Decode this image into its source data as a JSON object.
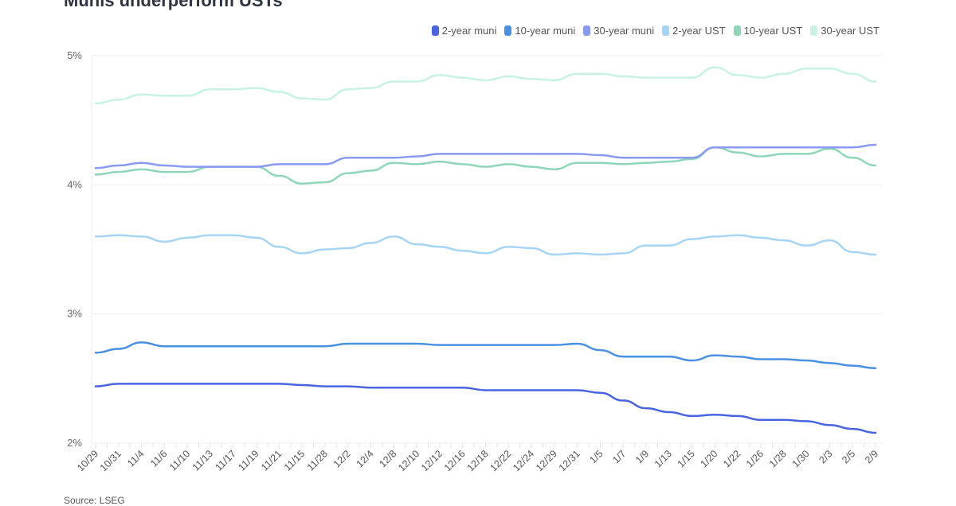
{
  "title": "Munis underperform USTs",
  "source": "Source: LSEG",
  "chart_data": {
    "type": "line",
    "title": "Munis underperform USTs",
    "xlabel": "",
    "ylabel": "",
    "ylim": [
      2,
      5
    ],
    "yticks": [
      {
        "v": 2,
        "label": "2%"
      },
      {
        "v": 3,
        "label": "3%"
      },
      {
        "v": 4,
        "label": "4%"
      },
      {
        "v": 5,
        "label": "5%"
      }
    ],
    "grid": true,
    "legend_position": "top-right",
    "categories": [
      "10/29",
      "10/31",
      "11/4",
      "11/6",
      "11/10",
      "11/13",
      "11/17",
      "11/19",
      "11/21",
      "11/15",
      "11/28",
      "12/2",
      "12/4",
      "12/8",
      "12/10",
      "12/12",
      "12/16",
      "12/18",
      "12/22",
      "12/24",
      "12/29",
      "12/31",
      "1/5",
      "1/7",
      "1/9",
      "1/13",
      "1/15",
      "1/20",
      "1/22",
      "1/26",
      "1/28",
      "1/30",
      "2/3",
      "2/5",
      "2/9"
    ],
    "series": [
      {
        "name": "2-year muni",
        "color": "#4a64e0",
        "values": [
          2.44,
          2.46,
          2.46,
          2.46,
          2.46,
          2.46,
          2.46,
          2.46,
          2.46,
          2.45,
          2.44,
          2.44,
          2.43,
          2.43,
          2.43,
          2.43,
          2.43,
          2.41,
          2.41,
          2.41,
          2.41,
          2.41,
          2.39,
          2.33,
          2.27,
          2.24,
          2.21,
          2.22,
          2.21,
          2.18,
          2.18,
          2.17,
          2.14,
          2.11,
          2.08
        ]
      },
      {
        "name": "10-year muni",
        "color": "#4a90e2",
        "values": [
          2.7,
          2.73,
          2.78,
          2.75,
          2.75,
          2.75,
          2.75,
          2.75,
          2.75,
          2.75,
          2.75,
          2.77,
          2.77,
          2.77,
          2.77,
          2.76,
          2.76,
          2.76,
          2.76,
          2.76,
          2.76,
          2.77,
          2.72,
          2.67,
          2.67,
          2.67,
          2.64,
          2.68,
          2.67,
          2.65,
          2.65,
          2.64,
          2.62,
          2.6,
          2.58
        ]
      },
      {
        "name": "30-year muni",
        "color": "#8a9af0",
        "values": [
          4.13,
          4.15,
          4.17,
          4.15,
          4.14,
          4.14,
          4.14,
          4.14,
          4.16,
          4.16,
          4.16,
          4.21,
          4.21,
          4.21,
          4.22,
          4.24,
          4.24,
          4.24,
          4.24,
          4.24,
          4.24,
          4.24,
          4.23,
          4.21,
          4.21,
          4.21,
          4.21,
          4.29,
          4.29,
          4.29,
          4.29,
          4.29,
          4.29,
          4.29,
          4.31
        ]
      },
      {
        "name": "2-year UST",
        "color": "#a6d4f5",
        "values": [
          3.6,
          3.61,
          3.6,
          3.56,
          3.59,
          3.61,
          3.61,
          3.59,
          3.52,
          3.47,
          3.5,
          3.51,
          3.55,
          3.6,
          3.54,
          3.52,
          3.49,
          3.47,
          3.52,
          3.51,
          3.46,
          3.47,
          3.46,
          3.47,
          3.53,
          3.53,
          3.58,
          3.6,
          3.61,
          3.59,
          3.57,
          3.53,
          3.57,
          3.48,
          3.46
        ]
      },
      {
        "name": "10-year UST",
        "color": "#8fd6b8",
        "values": [
          4.08,
          4.1,
          4.12,
          4.1,
          4.1,
          4.14,
          4.14,
          4.14,
          4.07,
          4.01,
          4.02,
          4.09,
          4.11,
          4.17,
          4.16,
          4.18,
          4.16,
          4.14,
          4.16,
          4.14,
          4.12,
          4.17,
          4.17,
          4.16,
          4.17,
          4.18,
          4.2,
          4.29,
          4.25,
          4.22,
          4.24,
          4.24,
          4.28,
          4.21,
          4.15
        ]
      },
      {
        "name": "30-year UST",
        "color": "#c8f2e2",
        "values": [
          4.63,
          4.66,
          4.7,
          4.69,
          4.69,
          4.74,
          4.74,
          4.75,
          4.72,
          4.67,
          4.66,
          4.74,
          4.75,
          4.8,
          4.8,
          4.85,
          4.83,
          4.81,
          4.84,
          4.82,
          4.81,
          4.86,
          4.86,
          4.84,
          4.83,
          4.83,
          4.83,
          4.91,
          4.85,
          4.83,
          4.86,
          4.9,
          4.9,
          4.86,
          4.8
        ]
      }
    ]
  }
}
